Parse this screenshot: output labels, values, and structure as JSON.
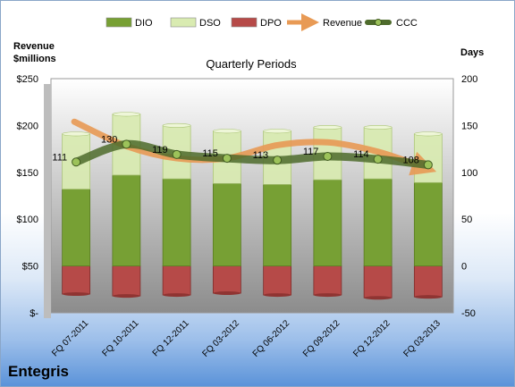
{
  "company": "Entegris",
  "left_axis_title": [
    "Revenue",
    "$millions"
  ],
  "right_axis_title": "Days",
  "chart_data": {
    "type": "bar",
    "title": "Quarterly Periods",
    "categories": [
      "FQ 07-2011",
      "FQ 10-2011",
      "FQ 12-2011",
      "FQ 03-2012",
      "FQ 06-2012",
      "FQ 09-2012",
      "FQ 12-2012",
      "FQ 03-2013"
    ],
    "left_axis": {
      "ticks": [
        "$-",
        "$50",
        "$100",
        "$150",
        "$200",
        "$250"
      ],
      "ylim": [
        0,
        250
      ]
    },
    "right_axis": {
      "ticks": [
        "-50",
        "0",
        "50",
        "100",
        "150",
        "200"
      ],
      "ylim": [
        -50,
        200
      ]
    },
    "legend": {
      "position": "top",
      "entries": [
        "DIO",
        "DSO",
        "DPO",
        "Revenue",
        "CCC"
      ]
    },
    "grid": false,
    "series": [
      {
        "name": "DIO",
        "axis": "right",
        "kind": "stacked-bar",
        "color": "#77a034",
        "values": [
          82,
          97,
          93,
          88,
          87,
          92,
          93,
          89
        ]
      },
      {
        "name": "DSO",
        "axis": "right",
        "kind": "stacked-bar",
        "color": "#d9ebb1",
        "values": [
          59,
          65,
          57,
          56,
          57,
          56,
          55,
          52
        ]
      },
      {
        "name": "DPO",
        "axis": "right",
        "kind": "negative-bar",
        "color": "#b64a48",
        "values": [
          -30,
          -32,
          -31,
          -29,
          -31,
          -31,
          -34,
          -33
        ]
      },
      {
        "name": "Revenue",
        "axis": "left",
        "kind": "arrow-line",
        "color": "#e89a55",
        "values": [
          204,
          178,
          165,
          165,
          179,
          182,
          172,
          155
        ]
      },
      {
        "name": "CCC",
        "axis": "right",
        "kind": "line-markers",
        "color": "#4e6b2c",
        "values": [
          111,
          130,
          119,
          115,
          113,
          117,
          114,
          108
        ]
      }
    ]
  }
}
